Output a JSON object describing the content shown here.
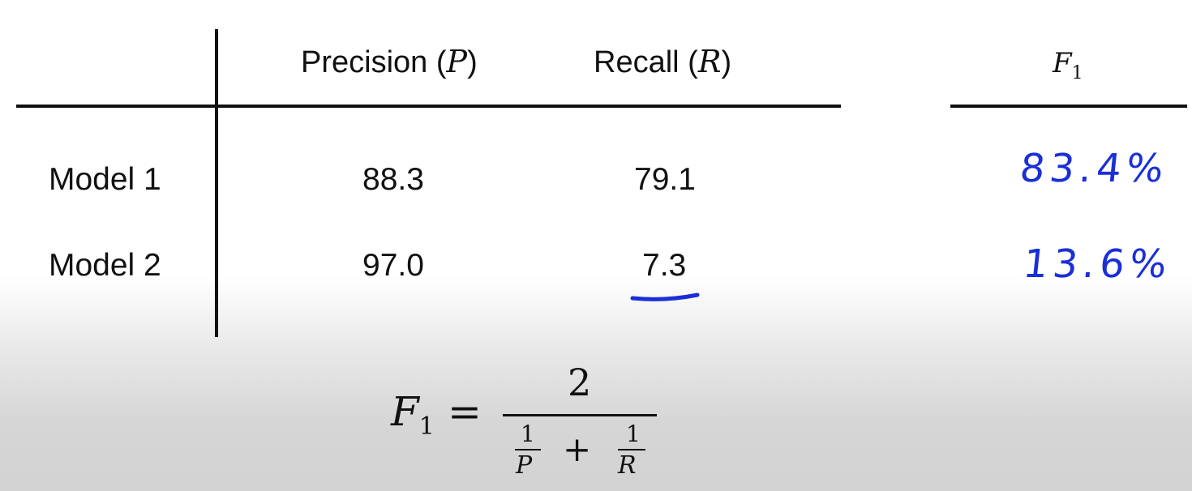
{
  "table": {
    "headers": {
      "precision": {
        "text": "Precision (",
        "var": "P",
        "close": ")"
      },
      "recall": {
        "text": "Recall (",
        "var": "R",
        "close": ")"
      },
      "f1": {
        "var": "F",
        "sub": "1"
      }
    },
    "rows": [
      {
        "label": "Model 1",
        "precision": "88.3",
        "recall": "79.1"
      },
      {
        "label": "Model 2",
        "precision": "97.0",
        "recall": "7.3"
      }
    ]
  },
  "handwritten": {
    "f1_model1": "83.4%",
    "f1_model2": "13.6%",
    "ink_color": "#1a2fd6"
  },
  "formula": {
    "lhs_var": "F",
    "lhs_sub": "1",
    "equals": "=",
    "numerator": "2",
    "term1_num": "1",
    "term1_den": "P",
    "plus": "+",
    "term2_num": "1",
    "term2_den": "R"
  }
}
